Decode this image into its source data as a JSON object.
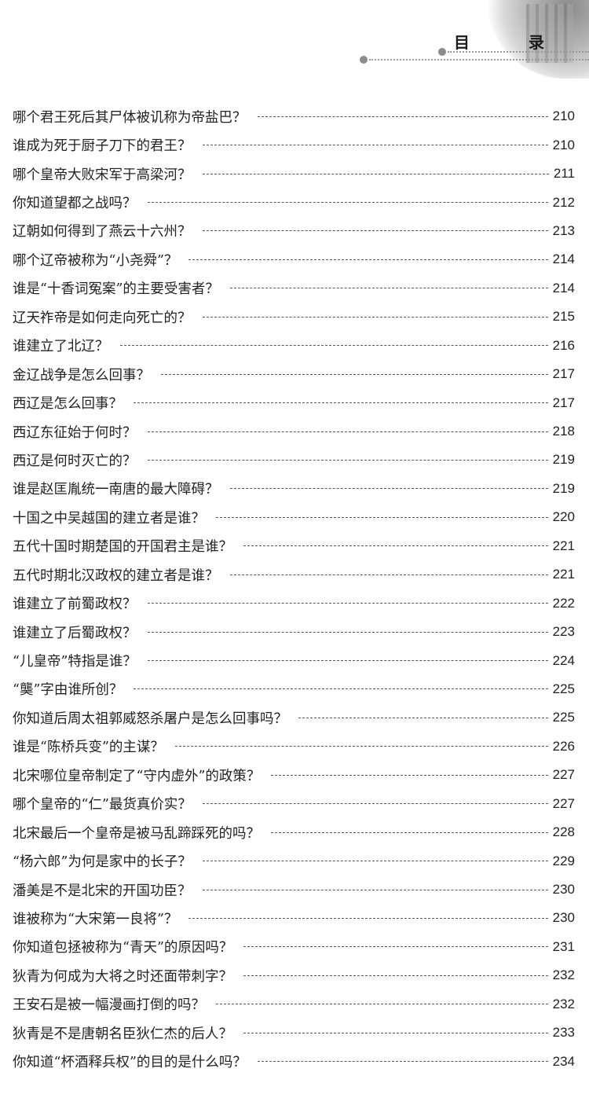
{
  "header": {
    "title": "目 录"
  },
  "entries": [
    {
      "title": "哪个君王死后其尸体被讥称为帝盐巴？",
      "page": "210"
    },
    {
      "title": "谁成为死于厨子刀下的君王？",
      "page": "210"
    },
    {
      "title": "哪个皇帝大败宋军于高梁河？",
      "page": "211"
    },
    {
      "title": "你知道望都之战吗？",
      "page": "212"
    },
    {
      "title": "辽朝如何得到了燕云十六州？",
      "page": "213"
    },
    {
      "title": "哪个辽帝被称为“小尧舜”？",
      "page": "214"
    },
    {
      "title": "谁是“十香词冤案”的主要受害者？",
      "page": "214"
    },
    {
      "title": "辽天祚帝是如何走向死亡的？",
      "page": "215"
    },
    {
      "title": "谁建立了北辽？",
      "page": "216"
    },
    {
      "title": "金辽战争是怎么回事？",
      "page": "217"
    },
    {
      "title": "西辽是怎么回事？",
      "page": "217"
    },
    {
      "title": "西辽东征始于何时？",
      "page": "218"
    },
    {
      "title": "西辽是何时灭亡的？",
      "page": "219"
    },
    {
      "title": "谁是赵匡胤统一南唐的最大障碍？",
      "page": "219"
    },
    {
      "title": "十国之中吴越国的建立者是谁？",
      "page": "220"
    },
    {
      "title": "五代十国时期楚国的开国君主是谁？",
      "page": "221"
    },
    {
      "title": "五代时期北汉政权的建立者是谁？",
      "page": "221"
    },
    {
      "title": "谁建立了前蜀政权？",
      "page": "222"
    },
    {
      "title": "谁建立了后蜀政权？",
      "page": "223"
    },
    {
      "title": "“儿皇帝”特指是谁？",
      "page": "224"
    },
    {
      "title": "“龑”字由谁所创？",
      "page": "225"
    },
    {
      "title": "你知道后周太祖郭威怒杀屠户是怎么回事吗？",
      "page": "225"
    },
    {
      "title": "谁是“陈桥兵变”的主谋？",
      "page": "226"
    },
    {
      "title": "北宋哪位皇帝制定了“守内虚外”的政策？",
      "page": "227"
    },
    {
      "title": "哪个皇帝的“仁”最货真价实？",
      "page": "227"
    },
    {
      "title": "北宋最后一个皇帝是被马乱蹄踩死的吗？",
      "page": "228"
    },
    {
      "title": "“杨六郎”为何是家中的长子？",
      "page": "229"
    },
    {
      "title": "潘美是不是北宋的开国功臣？",
      "page": "230"
    },
    {
      "title": "谁被称为“大宋第一良将”？",
      "page": "230"
    },
    {
      "title": "你知道包拯被称为“青天”的原因吗？",
      "page": "231"
    },
    {
      "title": "狄青为何成为大将之时还面带刺字？",
      "page": "232"
    },
    {
      "title": "王安石是被一幅漫画打倒的吗？",
      "page": "232"
    },
    {
      "title": "狄青是不是唐朝名臣狄仁杰的后人？",
      "page": "233"
    },
    {
      "title": "你知道“杯酒释兵权”的目的是什么吗？",
      "page": "234"
    }
  ]
}
